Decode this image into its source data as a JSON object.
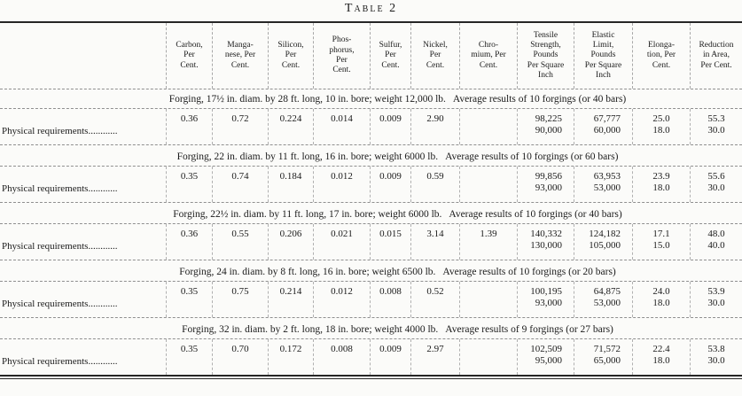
{
  "title": "Table 2",
  "row_label": "Physical requirements............",
  "columns": [
    "Carbon,\nPer\nCent.",
    "Manga-\nnese, Per\nCent.",
    "Silicon,\nPer\nCent.",
    "Phos-\nphorus,\nPer\nCent.",
    "Sulfur,\nPer\nCent.",
    "Nickel,\nPer\nCent.",
    "Chro-\nmium, Per\nCent.",
    "Tensile\nStrength,\nPounds\nPer Square\nInch",
    "Elastic\nLimit,\nPounds\nPer Square\nInch",
    "Elonga-\ntion, Per\nCent.",
    "Reduction\nin Area,\nPer Cent."
  ],
  "sections": [
    {
      "caption": "Forging, 17½ in. diam. by 28 ft. long, 10 in. bore; weight 12,000 lb.   Average results of 10 forgings (or 40 bars)",
      "chem": [
        "0.36",
        "0.72",
        "0.224",
        "0.014",
        "0.009",
        "2.90",
        ""
      ],
      "pairs": [
        [
          "98,225",
          "90,000"
        ],
        [
          "67,777",
          "60,000"
        ],
        [
          "25.0",
          "18.0"
        ],
        [
          "55.3",
          "30.0"
        ]
      ]
    },
    {
      "caption": "Forging, 22 in. diam. by 11 ft. long, 16 in. bore; weight 6000 lb.   Average results of 10 forgings (or 60 bars)",
      "chem": [
        "0.35",
        "0.74",
        "0.184",
        "0.012",
        "0.009",
        "0.59",
        ""
      ],
      "pairs": [
        [
          "99,856",
          "93,000"
        ],
        [
          "63,953",
          "53,000"
        ],
        [
          "23.9",
          "18.0"
        ],
        [
          "55.6",
          "30.0"
        ]
      ]
    },
    {
      "caption": "Forging, 22½ in. diam. by 11 ft. long, 17 in. bore; weight 6000 lb.   Average results of 10 forgings (or 40 bars)",
      "chem": [
        "0.36",
        "0.55",
        "0.206",
        "0.021",
        "0.015",
        "3.14",
        "1.39"
      ],
      "pairs": [
        [
          "140,332",
          "130,000"
        ],
        [
          "124,182",
          "105,000"
        ],
        [
          "17.1",
          "15.0"
        ],
        [
          "48.0",
          "40.0"
        ]
      ]
    },
    {
      "caption": "Forging, 24 in. diam. by 8 ft. long, 16 in. bore; weight 6500 lb.   Average results of 10 forgings (or 20 bars)",
      "chem": [
        "0.35",
        "0.75",
        "0.214",
        "0.012",
        "0.008",
        "0.52",
        ""
      ],
      "pairs": [
        [
          "100,195",
          "93,000"
        ],
        [
          "64,875",
          "53,000"
        ],
        [
          "24.0",
          "18.0"
        ],
        [
          "53.9",
          "30.0"
        ]
      ]
    },
    {
      "caption": "Forging, 32 in. diam. by 2 ft. long, 18 in. bore; weight 4000 lb.   Average results of 9 forgings (or 27 bars)",
      "chem": [
        "0.35",
        "0.70",
        "0.172",
        "0.008",
        "0.009",
        "2.97",
        ""
      ],
      "pairs": [
        [
          "102,509",
          "95,000"
        ],
        [
          "71,572",
          "65,000"
        ],
        [
          "22.4",
          "18.0"
        ],
        [
          "53.8",
          "30.0"
        ]
      ]
    }
  ]
}
